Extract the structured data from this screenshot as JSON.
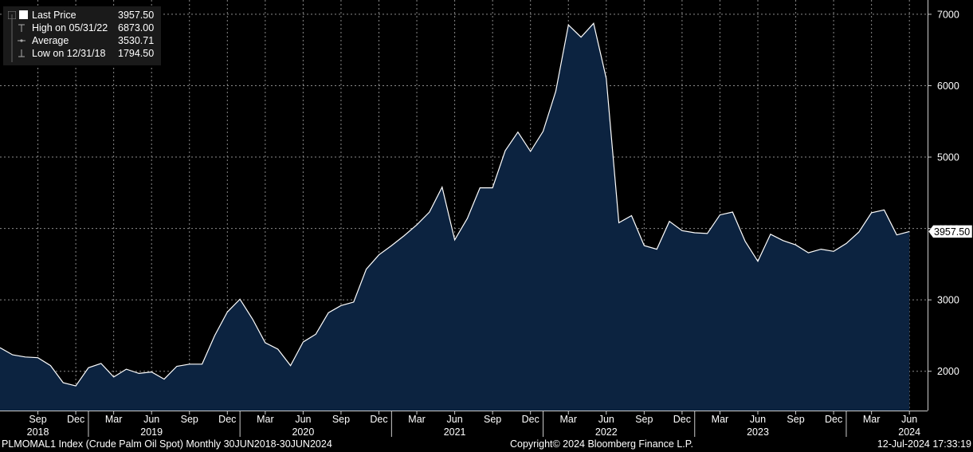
{
  "legend": {
    "items": [
      {
        "label": "Last Price",
        "value": "3957.50",
        "icon": "square-icon"
      },
      {
        "label": "High on 05/31/22",
        "value": "6873.00",
        "icon": "high-marker-icon"
      },
      {
        "label": "Average",
        "value": "3530.71",
        "icon": "average-marker-icon"
      },
      {
        "label": "Low on 12/31/18",
        "value": "1794.50",
        "icon": "low-marker-icon"
      }
    ]
  },
  "footer": {
    "left": "PLMOMAL1 Index (Crude Palm Oil Spot)  Monthly 30JUN2018-30JUN2024",
    "center": "Copyright© 2024 Bloomberg Finance L.P.",
    "right": "12-Jul-2024 17:33:19"
  },
  "colors": {
    "background": "#000000",
    "area_fill": "#0c2340",
    "line": "#ffffff",
    "grid": "#8a8a8a",
    "legend_bg": "#1a1a1a"
  },
  "chart_data": {
    "type": "area",
    "y_axis_side": "right",
    "ylim": [
      1450,
      7200
    ],
    "y_ticks": [
      2000,
      3000,
      4000,
      5000,
      6000,
      7000
    ],
    "last_value_label": "3957.50",
    "grid": true,
    "legend_position": "top-left",
    "x_ticks": [
      {
        "index": 3,
        "label": "Sep",
        "year": "2018"
      },
      {
        "index": 6,
        "label": "Dec"
      },
      {
        "index": 9,
        "label": "Mar"
      },
      {
        "index": 12,
        "label": "Jun",
        "year": "2019"
      },
      {
        "index": 15,
        "label": "Sep"
      },
      {
        "index": 18,
        "label": "Dec"
      },
      {
        "index": 21,
        "label": "Mar"
      },
      {
        "index": 24,
        "label": "Jun",
        "year": "2020"
      },
      {
        "index": 27,
        "label": "Sep"
      },
      {
        "index": 30,
        "label": "Dec"
      },
      {
        "index": 33,
        "label": "Mar"
      },
      {
        "index": 36,
        "label": "Jun",
        "year": "2021"
      },
      {
        "index": 39,
        "label": "Sep"
      },
      {
        "index": 42,
        "label": "Dec"
      },
      {
        "index": 45,
        "label": "Mar"
      },
      {
        "index": 48,
        "label": "Jun",
        "year": "2022"
      },
      {
        "index": 51,
        "label": "Sep"
      },
      {
        "index": 54,
        "label": "Dec"
      },
      {
        "index": 57,
        "label": "Mar"
      },
      {
        "index": 60,
        "label": "Jun",
        "year": "2023"
      },
      {
        "index": 63,
        "label": "Sep"
      },
      {
        "index": 66,
        "label": "Dec"
      },
      {
        "index": 69,
        "label": "Mar"
      },
      {
        "index": 72,
        "label": "Jun",
        "year": "2024"
      }
    ],
    "year_separators": [
      7,
      19,
      31,
      43,
      55,
      67
    ],
    "x": [
      "Jun 2018",
      "Jul 2018",
      "Aug 2018",
      "Sep 2018",
      "Oct 2018",
      "Nov 2018",
      "Dec 2018",
      "Jan 2019",
      "Feb 2019",
      "Mar 2019",
      "Apr 2019",
      "May 2019",
      "Jun 2019",
      "Jul 2019",
      "Aug 2019",
      "Sep 2019",
      "Oct 2019",
      "Nov 2019",
      "Dec 2019",
      "Jan 2020",
      "Feb 2020",
      "Mar 2020",
      "Apr 2020",
      "May 2020",
      "Jun 2020",
      "Jul 2020",
      "Aug 2020",
      "Sep 2020",
      "Oct 2020",
      "Nov 2020",
      "Dec 2020",
      "Jan 2021",
      "Feb 2021",
      "Mar 2021",
      "Apr 2021",
      "May 2021",
      "Jun 2021",
      "Jul 2021",
      "Aug 2021",
      "Sep 2021",
      "Oct 2021",
      "Nov 2021",
      "Dec 2021",
      "Jan 2022",
      "Feb 2022",
      "Mar 2022",
      "Apr 2022",
      "May 2022",
      "Jun 2022",
      "Jul 2022",
      "Aug 2022",
      "Sep 2022",
      "Oct 2022",
      "Nov 2022",
      "Dec 2022",
      "Jan 2023",
      "Feb 2023",
      "Mar 2023",
      "Apr 2023",
      "May 2023",
      "Jun 2023",
      "Jul 2023",
      "Aug 2023",
      "Sep 2023",
      "Oct 2023",
      "Nov 2023",
      "Dec 2023",
      "Jan 2024",
      "Feb 2024",
      "Mar 2024",
      "Apr 2024",
      "May 2024",
      "Jun 2024"
    ],
    "series": [
      {
        "values": [
          2330,
          2230,
          2200,
          2190,
          2080,
          1840,
          1794.5,
          2050,
          2110,
          1920,
          2030,
          1970,
          1990,
          1890,
          2070,
          2100,
          2100,
          2500,
          2830,
          3010,
          2730,
          2400,
          2310,
          2080,
          2410,
          2520,
          2820,
          2920,
          2970,
          3430,
          3630,
          3760,
          3900,
          4050,
          4230,
          4580,
          3840,
          4140,
          4570,
          4570,
          5090,
          5350,
          5080,
          5360,
          5920,
          6850,
          6680,
          6873,
          6100,
          4080,
          4180,
          3760,
          3710,
          4100,
          3970,
          3940,
          3930,
          4190,
          4230,
          3820,
          3540,
          3920,
          3830,
          3770,
          3660,
          3710,
          3680,
          3790,
          3950,
          4220,
          4260,
          3910,
          3957.5
        ]
      }
    ]
  }
}
